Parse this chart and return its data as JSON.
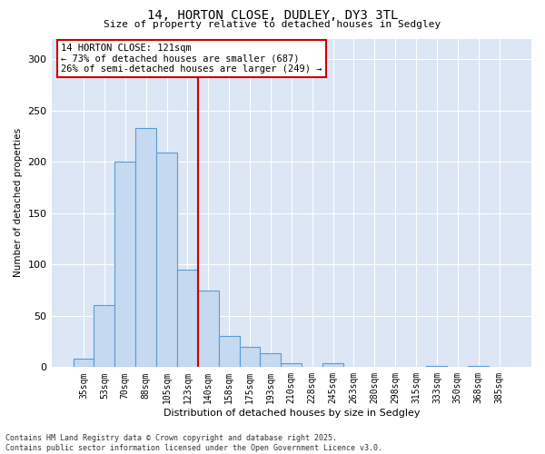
{
  "title": "14, HORTON CLOSE, DUDLEY, DY3 3TL",
  "subtitle": "Size of property relative to detached houses in Sedgley",
  "xlabel": "Distribution of detached houses by size in Sedgley",
  "ylabel": "Number of detached properties",
  "categories": [
    "35sqm",
    "53sqm",
    "70sqm",
    "88sqm",
    "105sqm",
    "123sqm",
    "140sqm",
    "158sqm",
    "175sqm",
    "193sqm",
    "210sqm",
    "228sqm",
    "245sqm",
    "263sqm",
    "280sqm",
    "298sqm",
    "315sqm",
    "333sqm",
    "350sqm",
    "368sqm",
    "385sqm"
  ],
  "values": [
    8,
    60,
    200,
    233,
    209,
    95,
    75,
    30,
    20,
    14,
    4,
    0,
    4,
    0,
    0,
    0,
    0,
    1,
    0,
    1,
    0
  ],
  "bar_color": "#c5d9f0",
  "bar_edge_color": "#5b9bd5",
  "background_color": "#ffffff",
  "plot_bg_color": "#dce6f4",
  "grid_color": "#ffffff",
  "vline_color": "#cc0000",
  "vline_pos": 5.5,
  "annotation_text": "14 HORTON CLOSE: 121sqm\n← 73% of detached houses are smaller (687)\n26% of semi-detached houses are larger (249) →",
  "annotation_box_facecolor": "#ffffff",
  "annotation_box_edgecolor": "#cc0000",
  "footnote": "Contains HM Land Registry data © Crown copyright and database right 2025.\nContains public sector information licensed under the Open Government Licence v3.0.",
  "ylim": [
    0,
    320
  ],
  "yticks": [
    0,
    50,
    100,
    150,
    200,
    250,
    300
  ]
}
